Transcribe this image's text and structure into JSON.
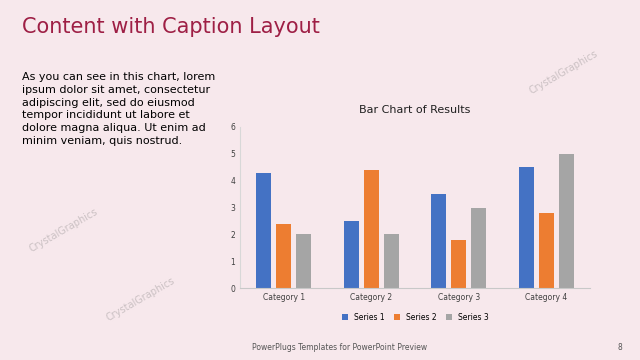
{
  "slide": {
    "title": "Content with Caption Layout",
    "caption": "As you can see in this chart, lorem ipsum dolor sit amet, consectetur adipiscing elit, sed do eiusmod tempor incididunt ut labore et dolore magna aliqua. Ut enim ad minim veniam, quis nostrud.",
    "footer": "PowerPlugs Templates for PowerPoint Preview",
    "page_number": 8,
    "watermark": "CrystalGraphics"
  },
  "chart_data": {
    "type": "bar",
    "title": "Bar Chart of Results",
    "categories": [
      "Category 1",
      "Category 2",
      "Category 3",
      "Category 4"
    ],
    "series": [
      {
        "name": "Series 1",
        "color": "#4472c4",
        "values": [
          4.3,
          2.5,
          3.5,
          4.5
        ]
      },
      {
        "name": "Series 2",
        "color": "#ed7d31",
        "values": [
          2.4,
          4.4,
          1.8,
          2.8
        ]
      },
      {
        "name": "Series 3",
        "color": "#a5a5a5",
        "values": [
          2,
          2,
          3,
          5
        ]
      }
    ],
    "ylim": [
      0,
      6
    ],
    "yticks": [
      0,
      1,
      2,
      3,
      4,
      5,
      6
    ],
    "grid": false,
    "legend": "bottom"
  }
}
